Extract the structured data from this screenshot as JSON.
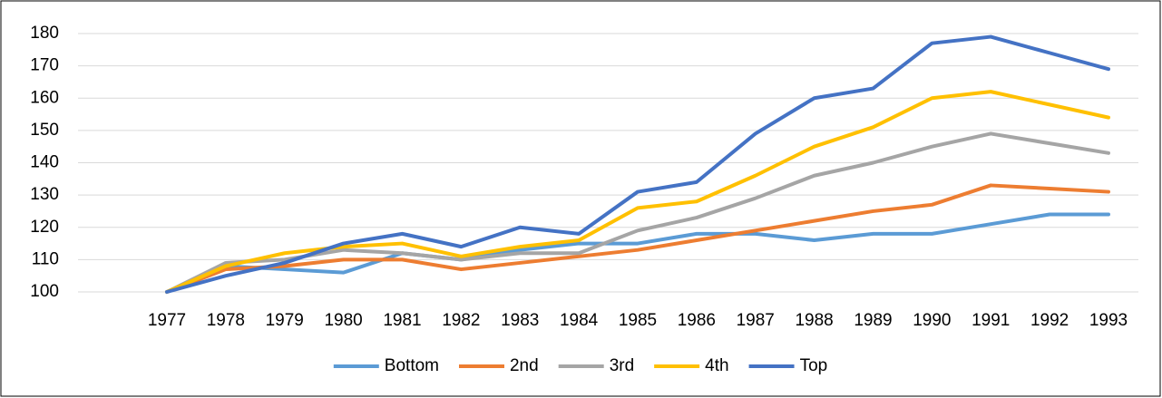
{
  "chart_data": {
    "type": "line",
    "categories": [
      "1977",
      "1978",
      "1979",
      "1980",
      "1981",
      "1982",
      "1983",
      "1984",
      "1985",
      "1986",
      "1987",
      "1988",
      "1989",
      "1990",
      "1991",
      "1992",
      "1993"
    ],
    "series": [
      {
        "name": "Bottom",
        "color": "#5b9bd5",
        "values": [
          100,
          108,
          107,
          106,
          112,
          110,
          113,
          115,
          115,
          118,
          118,
          116,
          118,
          118,
          121,
          124,
          124
        ]
      },
      {
        "name": "2nd",
        "color": "#ed7d31",
        "values": [
          100,
          107,
          108,
          110,
          110,
          107,
          109,
          111,
          113,
          116,
          119,
          122,
          125,
          127,
          133,
          132,
          131
        ]
      },
      {
        "name": "3rd",
        "color": "#a5a5a5",
        "values": [
          100,
          109,
          110,
          113,
          112,
          110,
          112,
          112,
          119,
          123,
          129,
          136,
          140,
          145,
          149,
          146,
          143
        ]
      },
      {
        "name": "4th",
        "color": "#ffc000",
        "values": [
          100,
          108,
          112,
          114,
          115,
          111,
          114,
          116,
          126,
          128,
          136,
          145,
          151,
          160,
          162,
          158,
          154
        ]
      },
      {
        "name": "Top",
        "color": "#4472c4",
        "values": [
          100,
          105,
          109,
          115,
          118,
          114,
          120,
          118,
          131,
          134,
          149,
          160,
          163,
          177,
          179,
          174,
          169
        ]
      }
    ],
    "ylim": [
      100,
      180
    ],
    "yticks": [
      100,
      110,
      120,
      130,
      140,
      150,
      160,
      170,
      180
    ],
    "grid": true,
    "legend": "bottom"
  }
}
